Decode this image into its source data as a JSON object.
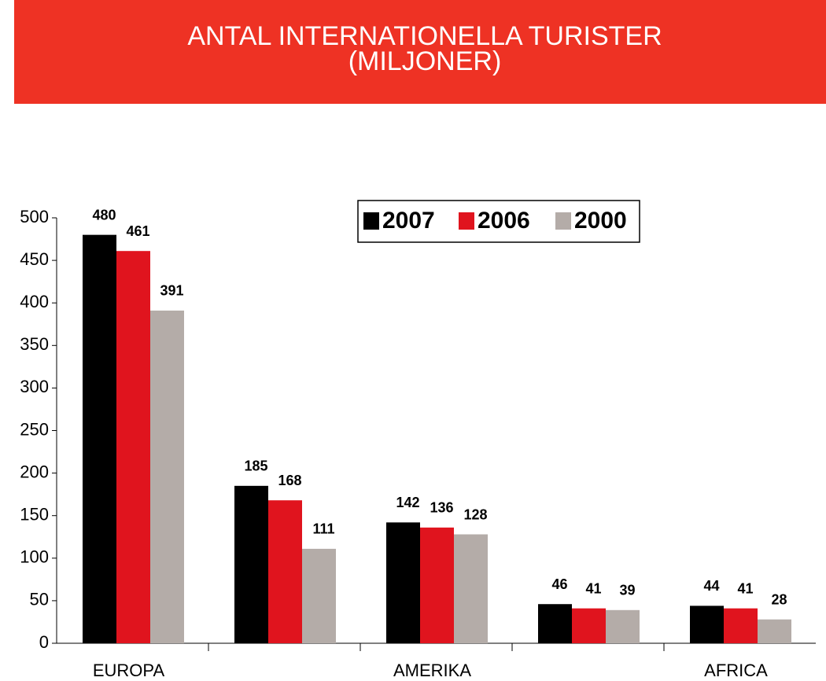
{
  "chart_data": {
    "type": "bar",
    "title": [
      "ANTAL INTERNATIONELLA TURISTER",
      "(MILJONER)"
    ],
    "title_background": "#ee3224",
    "categories": [
      "EUROPA",
      null,
      "AMERIKA",
      null,
      "AFRICA"
    ],
    "series": [
      {
        "name": "2007",
        "color": "#000000",
        "values": [
          480,
          185,
          142,
          46,
          44
        ]
      },
      {
        "name": "2006",
        "color": "#e0141e",
        "values": [
          461,
          168,
          136,
          41,
          41
        ]
      },
      {
        "name": "2000",
        "color": "#b4aca8",
        "values": [
          391,
          111,
          128,
          39,
          28
        ]
      }
    ],
    "ylim": [
      0,
      500
    ],
    "yticks": [
      0,
      50,
      100,
      150,
      200,
      250,
      300,
      350,
      400,
      450,
      500
    ],
    "grid": false,
    "legend": "top-right"
  }
}
